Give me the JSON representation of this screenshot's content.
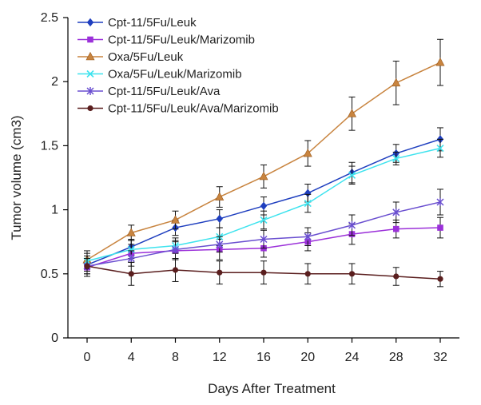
{
  "chart_data": {
    "type": "line",
    "title": "",
    "xlabel": "Days After Treatment",
    "ylabel": "Tumor volume (cm3)",
    "x": [
      0,
      4,
      8,
      12,
      16,
      20,
      24,
      28,
      32
    ],
    "x_tick_labels": [
      "0",
      "4",
      "8",
      "12",
      "16",
      "20",
      "24",
      "28",
      "32"
    ],
    "y_tick_labels": [
      "0",
      "0.5",
      "1",
      "1.5",
      "2",
      "2.5"
    ],
    "ylim": [
      0,
      2.5
    ],
    "grid": false,
    "legend_position": "top-left",
    "series": [
      {
        "name": "Cpt-11/5Fu/Leuk",
        "color": "#1f3fbf",
        "marker": "diamond",
        "values": [
          0.57,
          0.71,
          0.86,
          0.93,
          1.03,
          1.13,
          1.29,
          1.44,
          1.55
        ],
        "errors": [
          0.05,
          0.06,
          0.06,
          0.07,
          0.07,
          0.07,
          0.08,
          0.07,
          0.09
        ]
      },
      {
        "name": "Cpt-11/5Fu/Leuk/Marizomib",
        "color": "#9b30d9",
        "marker": "square",
        "values": [
          0.55,
          0.66,
          0.68,
          0.69,
          0.7,
          0.75,
          0.81,
          0.85,
          0.86
        ],
        "errors": [
          0.05,
          0.07,
          0.07,
          0.08,
          0.07,
          0.07,
          0.08,
          0.07,
          0.08
        ]
      },
      {
        "name": "Oxa/5Fu/Leuk",
        "color": "#c8843f",
        "marker": "triangle",
        "values": [
          0.61,
          0.82,
          0.92,
          1.1,
          1.26,
          1.44,
          1.75,
          1.99,
          2.15
        ],
        "errors": [
          0.07,
          0.06,
          0.07,
          0.08,
          0.09,
          0.1,
          0.13,
          0.17,
          0.18
        ]
      },
      {
        "name": "Oxa/5Fu/Leuk/Marizomib",
        "color": "#3ee3ee",
        "marker": "x",
        "values": [
          0.6,
          0.69,
          0.72,
          0.79,
          0.92,
          1.05,
          1.27,
          1.4,
          1.48
        ],
        "errors": [
          0.06,
          0.07,
          0.06,
          0.07,
          0.07,
          0.07,
          0.07,
          0.05,
          0.07
        ]
      },
      {
        "name": "Cpt-11/5Fu/Leuk/Ava",
        "color": "#6a4fd0",
        "marker": "star",
        "values": [
          0.56,
          0.62,
          0.69,
          0.73,
          0.77,
          0.79,
          0.88,
          0.98,
          1.06
        ],
        "errors": [
          0.06,
          0.06,
          0.07,
          0.06,
          0.07,
          0.07,
          0.08,
          0.08,
          0.1
        ]
      },
      {
        "name": "Cpt-11/5Fu/Leuk/Ava/Marizomib",
        "color": "#5a1e1e",
        "marker": "circle",
        "values": [
          0.56,
          0.5,
          0.53,
          0.51,
          0.51,
          0.5,
          0.5,
          0.48,
          0.46
        ],
        "errors": [
          0.08,
          0.09,
          0.09,
          0.09,
          0.09,
          0.08,
          0.08,
          0.07,
          0.06
        ]
      }
    ]
  }
}
